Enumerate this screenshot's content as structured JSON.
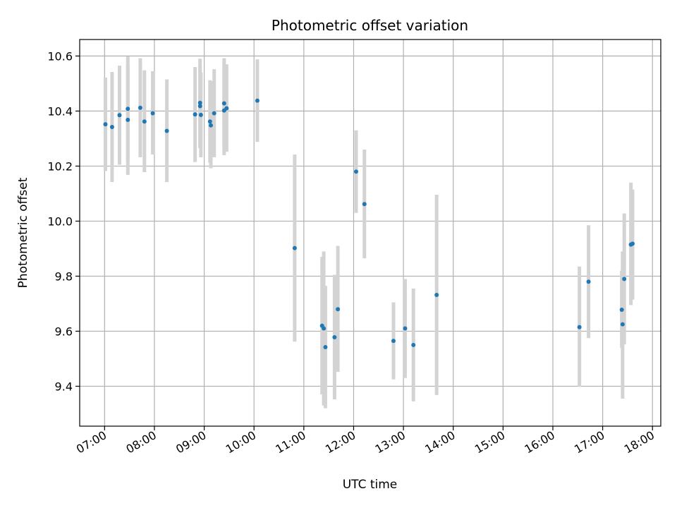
{
  "chart_data": {
    "type": "scatter",
    "title": "Photometric offset variation",
    "xlabel": "UTC time",
    "ylabel": "Photometric offset",
    "x_ticks": [
      "07:00",
      "08:00",
      "09:00",
      "10:00",
      "11:00",
      "12:00",
      "13:00",
      "14:00",
      "15:00",
      "16:00",
      "17:00",
      "18:00"
    ],
    "y_ticks": [
      9.4,
      9.6,
      9.8,
      10.0,
      10.2,
      10.4,
      10.6
    ],
    "xlim": [
      "06:30",
      "18:10"
    ],
    "ylim": [
      9.255,
      10.66
    ],
    "grid": true,
    "colors": {
      "point": "#1f77b4",
      "errorbar": "#d3d3d3",
      "grid": "#b0b0b0"
    },
    "series": [
      {
        "points": [
          {
            "x": "07:01",
            "y": 10.352,
            "ylow": 10.182,
            "yhigh": 10.522
          },
          {
            "x": "07:09",
            "y": 10.342,
            "ylow": 10.142,
            "yhigh": 10.542
          },
          {
            "x": "07:18",
            "y": 10.385,
            "ylow": 10.205,
            "yhigh": 10.565
          },
          {
            "x": "07:28",
            "y": 10.408,
            "ylow": 10.218,
            "yhigh": 10.598
          },
          {
            "x": "07:28",
            "y": 10.368,
            "ylow": 10.168,
            "yhigh": 10.568
          },
          {
            "x": "07:43",
            "y": 10.412,
            "ylow": 10.232,
            "yhigh": 10.592
          },
          {
            "x": "07:48",
            "y": 10.362,
            "ylow": 10.178,
            "yhigh": 10.548
          },
          {
            "x": "07:58",
            "y": 10.392,
            "ylow": 10.242,
            "yhigh": 10.545
          },
          {
            "x": "08:15",
            "y": 10.328,
            "ylow": 10.142,
            "yhigh": 10.515
          },
          {
            "x": "08:49",
            "y": 10.388,
            "ylow": 10.215,
            "yhigh": 10.56
          },
          {
            "x": "08:55",
            "y": 10.43,
            "ylow": 10.265,
            "yhigh": 10.59
          },
          {
            "x": "08:55",
            "y": 10.418,
            "ylow": 10.272,
            "yhigh": 10.565
          },
          {
            "x": "08:56",
            "y": 10.386,
            "ylow": 10.232,
            "yhigh": 10.54
          },
          {
            "x": "09:07",
            "y": 10.362,
            "ylow": 10.212,
            "yhigh": 10.512
          },
          {
            "x": "09:08",
            "y": 10.348,
            "ylow": 10.192,
            "yhigh": 10.508
          },
          {
            "x": "09:12",
            "y": 10.392,
            "ylow": 10.232,
            "yhigh": 10.552
          },
          {
            "x": "09:24",
            "y": 10.428,
            "ylow": 10.268,
            "yhigh": 10.592
          },
          {
            "x": "09:24",
            "y": 10.402,
            "ylow": 10.24,
            "yhigh": 10.565
          },
          {
            "x": "09:27",
            "y": 10.41,
            "ylow": 10.252,
            "yhigh": 10.57
          },
          {
            "x": "10:04",
            "y": 10.438,
            "ylow": 10.288,
            "yhigh": 10.588
          },
          {
            "x": "10:49",
            "y": 9.902,
            "ylow": 9.562,
            "yhigh": 10.242
          },
          {
            "x": "11:22",
            "y": 9.62,
            "ylow": 9.37,
            "yhigh": 9.87
          },
          {
            "x": "11:24",
            "y": 9.61,
            "ylow": 9.33,
            "yhigh": 9.89
          },
          {
            "x": "11:26",
            "y": 9.542,
            "ylow": 9.32,
            "yhigh": 9.765
          },
          {
            "x": "11:37",
            "y": 9.578,
            "ylow": 9.352,
            "yhigh": 9.805
          },
          {
            "x": "11:41",
            "y": 9.68,
            "ylow": 9.452,
            "yhigh": 9.91
          },
          {
            "x": "12:03",
            "y": 10.18,
            "ylow": 10.03,
            "yhigh": 10.33
          },
          {
            "x": "12:13",
            "y": 10.062,
            "ylow": 9.865,
            "yhigh": 10.26
          },
          {
            "x": "12:48",
            "y": 9.565,
            "ylow": 9.425,
            "yhigh": 9.705
          },
          {
            "x": "13:02",
            "y": 9.61,
            "ylow": 9.43,
            "yhigh": 9.79
          },
          {
            "x": "13:12",
            "y": 9.55,
            "ylow": 9.345,
            "yhigh": 9.755
          },
          {
            "x": "13:40",
            "y": 9.732,
            "ylow": 9.368,
            "yhigh": 10.096
          },
          {
            "x": "16:32",
            "y": 9.615,
            "ylow": 9.398,
            "yhigh": 9.835
          },
          {
            "x": "16:43",
            "y": 9.78,
            "ylow": 9.575,
            "yhigh": 9.985
          },
          {
            "x": "17:23",
            "y": 9.678,
            "ylow": 9.54,
            "yhigh": 9.82
          },
          {
            "x": "17:24",
            "y": 9.625,
            "ylow": 9.355,
            "yhigh": 9.89
          },
          {
            "x": "17:26",
            "y": 9.79,
            "ylow": 9.552,
            "yhigh": 10.028
          },
          {
            "x": "17:34",
            "y": 9.915,
            "ylow": 9.695,
            "yhigh": 10.14
          },
          {
            "x": "17:36",
            "y": 9.918,
            "ylow": 9.715,
            "yhigh": 10.115
          }
        ]
      }
    ]
  }
}
